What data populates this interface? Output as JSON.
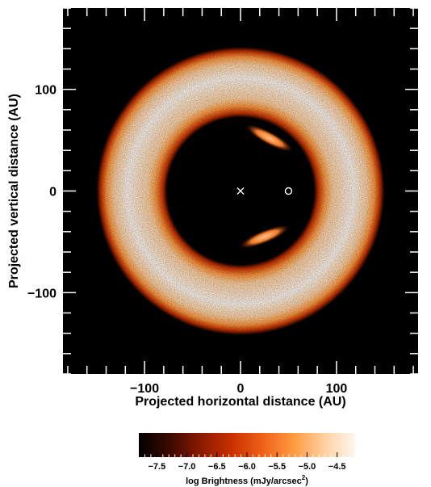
{
  "chart_data": {
    "type": "heatmap",
    "title": "",
    "xlabel": "Projected horizontal distance (AU)",
    "ylabel": "Projected vertical distance (AU)",
    "xlim": [
      -185,
      185
    ],
    "ylim": [
      -180,
      180
    ],
    "x_ticks": [
      -100,
      0,
      100
    ],
    "y_ticks": [
      -100,
      0,
      100
    ],
    "x_tick_labels": [
      "−100",
      "0",
      "100"
    ],
    "y_tick_labels": [
      "−100",
      "0",
      "100"
    ],
    "colormap": [
      "#000000",
      "#3a0a00",
      "#8a1a00",
      "#c83000",
      "#f06018",
      "#ff9a40",
      "#ffd0a0",
      "#fff6ee"
    ],
    "features": {
      "ring": {
        "inner_radius_au": 78,
        "outer_radius_au": 150,
        "peak_radius_au": 118,
        "peak_log_brightness": -4.5
      },
      "inner_arcs": [
        {
          "center_x_au": 30,
          "center_y_au": 52,
          "length_au": 55,
          "log_brightness": -5.0
        },
        {
          "center_x_au": 25,
          "center_y_au": -45,
          "length_au": 55,
          "log_brightness": -5.0
        }
      ],
      "background_log_brightness": -7.5
    },
    "markers": [
      {
        "symbol": "×",
        "name": "star",
        "x": 0,
        "y": 0
      },
      {
        "symbol": "○",
        "name": "planet",
        "x": 50,
        "y": 0
      }
    ],
    "colorbar": {
      "label": "log Brightness (mJy/arcsec",
      "label_superscript": "2",
      "label_suffix": ")",
      "range": [
        -7.8,
        -4.2
      ],
      "ticks": [
        -7.5,
        -7.0,
        -6.5,
        -6.0,
        -5.5,
        -5.0,
        -4.5
      ],
      "tick_labels": [
        "−7.5",
        "−7.0",
        "−6.5",
        "−6.0",
        "−5.5",
        "−5.0",
        "−4.5"
      ]
    }
  }
}
